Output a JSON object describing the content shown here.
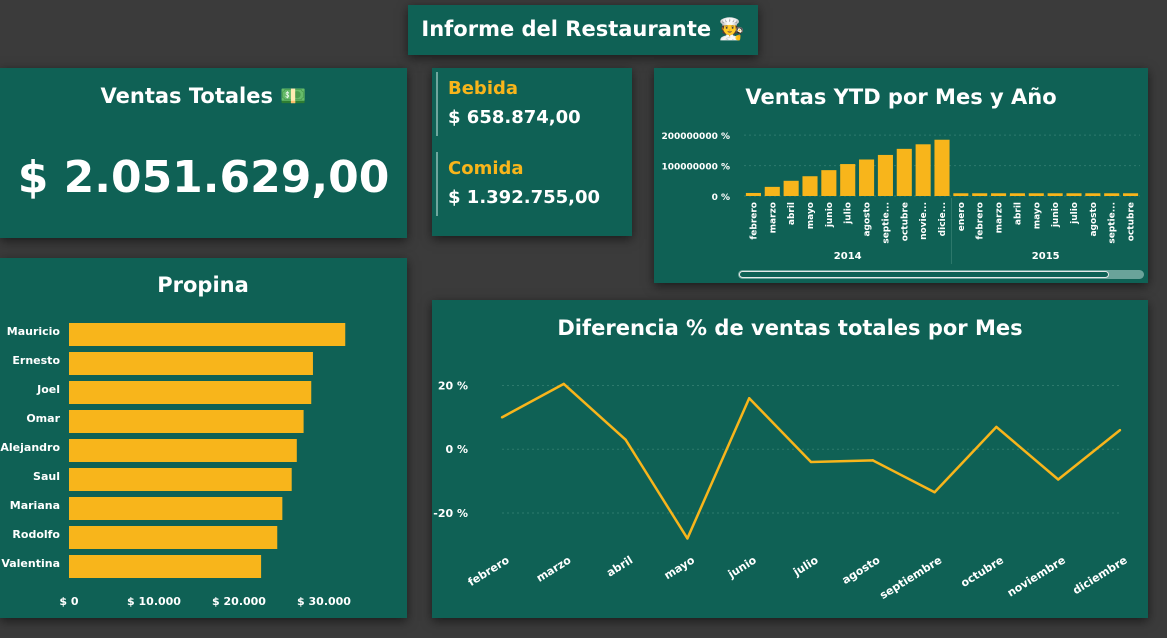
{
  "header": {
    "title": "Informe del Restaurante",
    "emoji": "🧑‍🍳"
  },
  "colors": {
    "background": "#3b3b3b",
    "card": "#0f6155",
    "accent": "#f8b51b",
    "text": "#ffffff",
    "grid": "#2e7a6d"
  },
  "ventas_totales": {
    "title": "Ventas Totales",
    "emoji": "💵",
    "value": "$ 2.051.629,00"
  },
  "categorias": [
    {
      "label": "Bebida",
      "value": "$ 658.874,00"
    },
    {
      "label": "Comida",
      "value": "$ 1.392.755,00"
    }
  ],
  "ytd_chart": {
    "title": "Ventas YTD por Mes y Año",
    "scrollbar": "horizontal-scrollbar",
    "chart_data": {
      "type": "bar",
      "title": "Ventas YTD por Mes y Año",
      "y_ticks": [
        "200000000 %",
        "100000000 %",
        "0 %"
      ],
      "ylim": [
        0,
        240000000
      ],
      "groups": [
        {
          "year": "2014",
          "months": [
            "febrero",
            "marzo",
            "abril",
            "mayo",
            "junio",
            "julio",
            "agosto",
            "septie...",
            "octubre",
            "novie...",
            "dicie..."
          ],
          "values": [
            10000000,
            30000000,
            50000000,
            65000000,
            85000000,
            105000000,
            120000000,
            135000000,
            155000000,
            170000000,
            185000000
          ]
        },
        {
          "year": "2015",
          "months": [
            "enero",
            "febrero",
            "marzo",
            "abril",
            "mayo",
            "junio",
            "julio",
            "agosto",
            "septie...",
            "octubre"
          ],
          "values": [
            9000000,
            9000000,
            9000000,
            9000000,
            9000000,
            9000000,
            9000000,
            9000000,
            9000000,
            9000000
          ]
        }
      ]
    }
  },
  "propina": {
    "title": "Propina",
    "chart_data": {
      "type": "bar",
      "orientation": "horizontal",
      "categories": [
        "Mauricio",
        "Ernesto",
        "Joel",
        "Omar",
        "Alejandro",
        "Saul",
        "Mariana",
        "Rodolfo",
        "Valentina"
      ],
      "values": [
        32500,
        28700,
        28500,
        27600,
        26800,
        26200,
        25100,
        24500,
        22600
      ],
      "x_ticks": [
        "$ 0",
        "$ 10.000",
        "$ 20.000",
        "$ 30.000"
      ],
      "x_tick_values": [
        0,
        10000,
        20000,
        30000
      ],
      "xlim": [
        0,
        38000
      ],
      "title": "Propina"
    }
  },
  "diferencia": {
    "title": "Diferencia % de ventas totales por Mes",
    "chart_data": {
      "type": "line",
      "categories": [
        "febrero",
        "marzo",
        "abril",
        "mayo",
        "junio",
        "julio",
        "agosto",
        "septiembre",
        "octubre",
        "noviembre",
        "diciembre"
      ],
      "values": [
        10,
        20.5,
        3,
        -28,
        16,
        -4,
        -3.5,
        -13.5,
        7,
        -9.5,
        6
      ],
      "y_ticks": [
        "20 %",
        "0 %",
        "-20 %"
      ],
      "y_tick_values": [
        20,
        0,
        -20
      ],
      "ylim": [
        -31,
        28
      ],
      "title": "Diferencia % de ventas totales por Mes"
    }
  }
}
